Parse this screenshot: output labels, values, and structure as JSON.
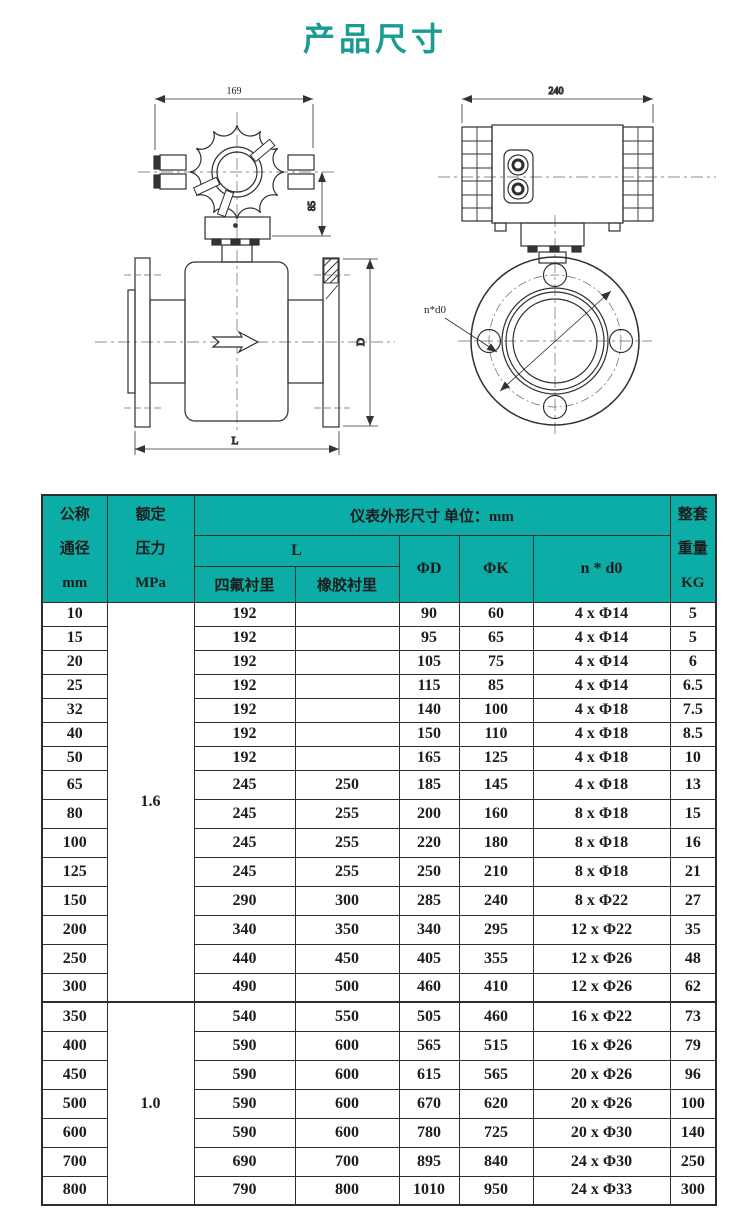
{
  "colors": {
    "title": "#1a9c92",
    "header_bg": "#0cada6",
    "border": "#2d2d2d"
  },
  "page": {
    "title": "产品尺寸"
  },
  "drawings": {
    "front_view": {
      "dim_width": "169",
      "dim_height": "85",
      "dim_diameter": "D",
      "dim_length": "L"
    },
    "side_view": {
      "dim_width": "240",
      "bolt_label": "n*d0"
    }
  },
  "table": {
    "header": {
      "col_dn": "公称\n通径\nmm",
      "col_pressure": "额定\n压力\nMPa",
      "group_title": "仪表外形尺寸  单位：mm",
      "col_L": "L",
      "col_ptfe": "四氟衬里",
      "col_rubber": "橡胶衬里",
      "col_phiD": "ΦD",
      "col_phiK": "ΦK",
      "col_nd0": "n * d0",
      "col_weight": "整套\n重量\nKG"
    },
    "pressure_groups": [
      {
        "pressure": "1.6",
        "rows": 15
      },
      {
        "pressure": "1.0",
        "rows": 7
      }
    ],
    "rows": [
      [
        "10",
        "192",
        "",
        "90",
        "60",
        "4 x Φ14",
        "5"
      ],
      [
        "15",
        "192",
        "",
        "95",
        "65",
        "4 x Φ14",
        "5"
      ],
      [
        "20",
        "192",
        "",
        "105",
        "75",
        "4 x Φ14",
        "6"
      ],
      [
        "25",
        "192",
        "",
        "115",
        "85",
        "4 x Φ14",
        "6.5"
      ],
      [
        "32",
        "192",
        "",
        "140",
        "100",
        "4 x Φ18",
        "7.5"
      ],
      [
        "40",
        "192",
        "",
        "150",
        "110",
        "4 x Φ18",
        "8.5"
      ],
      [
        "50",
        "192",
        "",
        "165",
        "125",
        "4 x Φ18",
        "10"
      ],
      [
        "65",
        "245",
        "250",
        "185",
        "145",
        "4 x Φ18",
        "13"
      ],
      [
        "80",
        "245",
        "255",
        "200",
        "160",
        "8 x Φ18",
        "15"
      ],
      [
        "100",
        "245",
        "255",
        "220",
        "180",
        "8 x Φ18",
        "16"
      ],
      [
        "125",
        "245",
        "255",
        "250",
        "210",
        "8 x Φ18",
        "21"
      ],
      [
        "150",
        "290",
        "300",
        "285",
        "240",
        "8 x Φ22",
        "27"
      ],
      [
        "200",
        "340",
        "350",
        "340",
        "295",
        "12 x Φ22",
        "35"
      ],
      [
        "250",
        "440",
        "450",
        "405",
        "355",
        "12 x Φ26",
        "48"
      ],
      [
        "300",
        "490",
        "500",
        "460",
        "410",
        "12 x Φ26",
        "62"
      ],
      [
        "350",
        "540",
        "550",
        "505",
        "460",
        "16 x Φ22",
        "73"
      ],
      [
        "400",
        "590",
        "600",
        "565",
        "515",
        "16 x Φ26",
        "79"
      ],
      [
        "450",
        "590",
        "600",
        "615",
        "565",
        "20 x Φ26",
        "96"
      ],
      [
        "500",
        "590",
        "600",
        "670",
        "620",
        "20 x Φ26",
        "100"
      ],
      [
        "600",
        "590",
        "600",
        "780",
        "725",
        "20 x Φ30",
        "140"
      ],
      [
        "700",
        "690",
        "700",
        "895",
        "840",
        "24 x Φ30",
        "250"
      ],
      [
        "800",
        "790",
        "800",
        "1010",
        "950",
        "24 x Φ33",
        "300"
      ]
    ]
  }
}
